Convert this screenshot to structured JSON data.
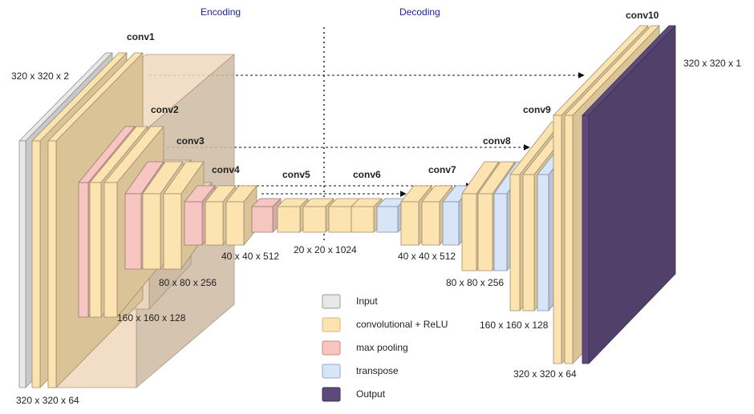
{
  "sections": {
    "encoding": "Encoding",
    "decoding": "Decoding"
  },
  "layers": {
    "conv1": "conv1",
    "conv2": "conv2",
    "conv3": "conv3",
    "conv4": "conv4",
    "conv5": "conv5",
    "conv6": "conv6",
    "conv7": "conv7",
    "conv8": "conv8",
    "conv9": "conv9",
    "conv10": "conv10"
  },
  "dims": {
    "input": "320 x 320 x 2",
    "output": "320 x 320 x 1",
    "enc_320": "320 x 320 x 64",
    "enc_160": "160 x 160 x 128",
    "enc_80": "80 x 80 x 256",
    "enc_40": "40 x 40 x 512",
    "bottleneck": "20 x 20 x 1024",
    "dec_40": "40 x 40 x 512",
    "dec_80": "80 x 80 x 256",
    "dec_160": "160 x 160 x 128",
    "dec_320": "320 x 320 x 64"
  },
  "legend": [
    {
      "label": "Input",
      "color": "#e8e8e8"
    },
    {
      "label": "convolutional + ReLU",
      "color": "#fde3b0"
    },
    {
      "label": "max pooling",
      "color": "#f7c6c0"
    },
    {
      "label": "transpose",
      "color": "#d8e4f7"
    },
    {
      "label": "Output",
      "color": "#5e4a7a"
    }
  ],
  "colors": {
    "input": "#e8e8e8",
    "conv": "#fde3b0",
    "pool": "#f7c6c0",
    "transpose": "#d8e4f7",
    "output": "#5e4a7a",
    "container": "#f0d8bd"
  }
}
